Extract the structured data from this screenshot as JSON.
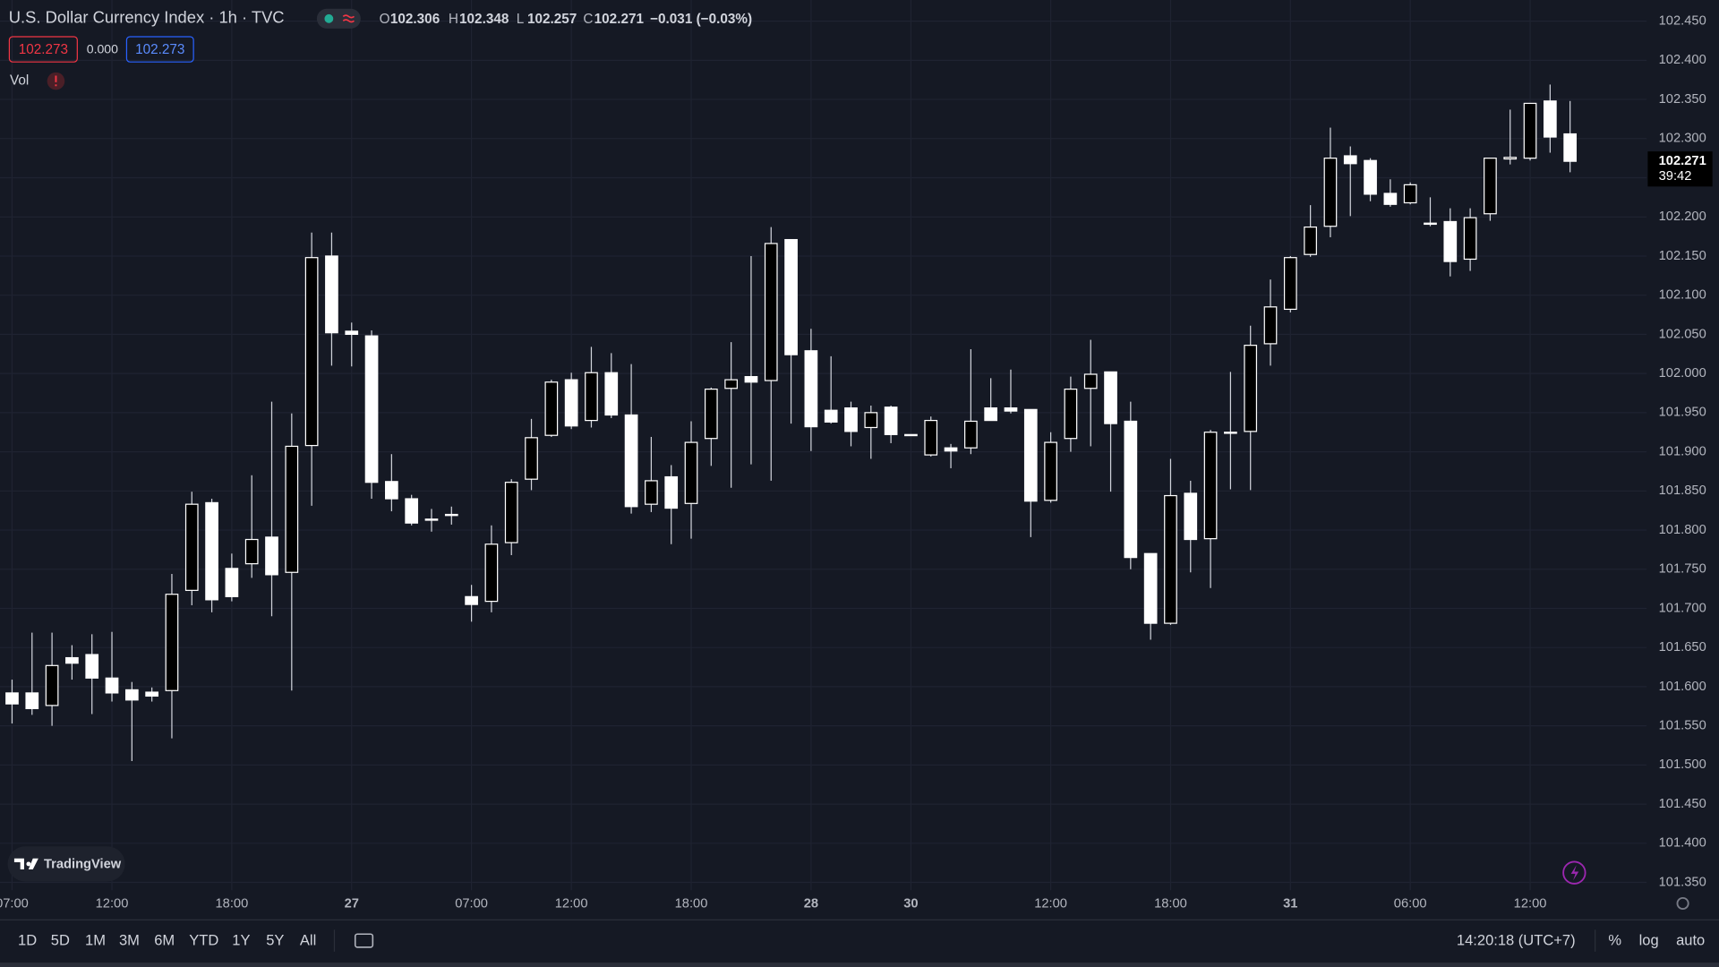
{
  "chart_data": {
    "type": "candlestick",
    "title": "U.S. Dollar Currency Index · 1h · TVC",
    "ohlc_labels": [
      "O",
      "H",
      "L",
      "C"
    ],
    "change_label": "−0.031 (−0.03%)",
    "price_boxes": [
      "102.273",
      "0.000",
      "102.273"
    ],
    "indicator_label": "Vol",
    "countdown": "39:42",
    "branding": "TradingView",
    "categories": [
      "07:00",
      null,
      null,
      null,
      null,
      "12:00",
      null,
      null,
      null,
      null,
      null,
      "18:00",
      null,
      null,
      null,
      null,
      null,
      "27",
      null,
      null,
      null,
      null,
      null,
      "07:00",
      null,
      null,
      null,
      null,
      "12:00",
      null,
      null,
      null,
      null,
      null,
      "18:00",
      null,
      null,
      null,
      null,
      null,
      "28",
      null,
      null,
      null,
      null,
      "30",
      null,
      null,
      null,
      null,
      null,
      null,
      "12:00",
      null,
      null,
      null,
      null,
      null,
      "18:00",
      null,
      null,
      null,
      null,
      null,
      "31",
      null,
      null,
      null,
      null,
      null,
      "06:00",
      null,
      null,
      null,
      null,
      null,
      "12:00",
      null,
      null
    ],
    "open": [
      101.592,
      101.592,
      101.576,
      101.637,
      101.641,
      101.611,
      101.596,
      101.593,
      101.595,
      101.723,
      101.835,
      101.751,
      101.757,
      101.791,
      101.746,
      101.908,
      102.15,
      102.054,
      102.048,
      101.862,
      101.84,
      101.814,
      101.82,
      101.715,
      101.709,
      101.784,
      101.865,
      101.921,
      101.992,
      101.94,
      102.001,
      101.947,
      101.833,
      101.868,
      101.834,
      101.917,
      101.981,
      101.996,
      101.991,
      102.171,
      102.029,
      101.953,
      101.956,
      101.931,
      101.957,
      101.922,
      101.896,
      101.905,
      101.905,
      101.956,
      101.956,
      101.954,
      101.838,
      101.917,
      101.981,
      102.002,
      101.939,
      101.77,
      101.681,
      101.847,
      101.789,
      101.924,
      101.926,
      102.038,
      102.082,
      102.152,
      102.188,
      102.278,
      102.272,
      102.23,
      102.218,
      102.192,
      102.194,
      102.146,
      102.204,
      102.274,
      102.275,
      102.348,
      102.306
    ],
    "high": [
      101.609,
      101.669,
      101.669,
      101.653,
      101.667,
      101.67,
      101.606,
      101.599,
      101.744,
      101.849,
      101.84,
      101.77,
      101.87,
      101.964,
      101.949,
      102.18,
      102.18,
      102.065,
      102.055,
      101.897,
      101.845,
      101.827,
      101.83,
      101.73,
      101.806,
      101.865,
      101.942,
      101.992,
      102.001,
      102.034,
      102.026,
      102.012,
      101.919,
      101.883,
      101.939,
      101.982,
      102.04,
      102.15,
      102.187,
      102.171,
      102.057,
      102.022,
      101.964,
      101.959,
      101.959,
      101.922,
      101.945,
      101.91,
      102.031,
      101.994,
      102.005,
      101.954,
      101.925,
      101.996,
      102.043,
      102.002,
      101.964,
      101.77,
      101.891,
      101.863,
      101.928,
      102.002,
      102.061,
      102.12,
      102.15,
      102.215,
      102.314,
      102.29,
      102.275,
      102.248,
      102.244,
      102.225,
      102.211,
      102.211,
      102.275,
      102.337,
      102.345,
      102.369,
      102.348
    ],
    "low": [
      101.553,
      101.564,
      101.55,
      101.609,
      101.565,
      101.581,
      101.505,
      101.581,
      101.534,
      101.704,
      101.695,
      101.709,
      101.739,
      101.69,
      101.595,
      101.831,
      102.01,
      102.009,
      101.84,
      101.824,
      101.806,
      101.798,
      101.807,
      101.683,
      101.695,
      101.768,
      101.851,
      101.919,
      101.929,
      101.931,
      101.943,
      101.821,
      101.823,
      101.782,
      101.789,
      101.882,
      101.854,
      101.884,
      101.863,
      101.936,
      101.901,
      101.936,
      101.907,
      101.891,
      101.911,
      101.921,
      101.894,
      101.879,
      101.897,
      101.94,
      101.949,
      101.791,
      101.835,
      101.9,
      101.907,
      101.849,
      101.75,
      101.66,
      101.679,
      101.746,
      101.726,
      101.852,
      101.851,
      102.01,
      102.078,
      102.149,
      102.174,
      102.201,
      102.22,
      102.213,
      102.216,
      102.188,
      102.124,
      102.131,
      102.195,
      102.267,
      102.272,
      102.282,
      102.257
    ],
    "close": [
      101.578,
      101.572,
      101.627,
      101.63,
      101.611,
      101.592,
      101.583,
      101.588,
      101.718,
      101.833,
      101.711,
      101.715,
      101.788,
      101.743,
      101.907,
      102.148,
      102.052,
      102.05,
      101.861,
      101.84,
      101.809,
      101.813,
      101.819,
      101.705,
      101.782,
      101.861,
      101.918,
      101.989,
      101.933,
      102.001,
      101.947,
      101.83,
      101.863,
      101.828,
      101.912,
      101.98,
      101.992,
      101.989,
      102.166,
      102.024,
      101.932,
      101.938,
      101.926,
      101.95,
      101.922,
      101.921,
      101.94,
      101.901,
      101.939,
      101.94,
      101.952,
      101.837,
      101.912,
      101.98,
      101.999,
      101.936,
      101.765,
      101.681,
      101.844,
      101.788,
      101.925,
      101.925,
      102.036,
      102.085,
      102.148,
      102.187,
      102.275,
      102.268,
      102.229,
      102.216,
      102.241,
      102.191,
      102.143,
      102.199,
      102.275,
      102.276,
      102.345,
      102.302,
      102.271
    ],
    "up_color": "#000000",
    "down_color": "#ffffff",
    "border_color": "#ffffff",
    "wick_color": "#d1d4dc",
    "ylim": [
      101.34,
      102.477
    ],
    "yticks": [
      {
        "value": 101.35,
        "label": "101.350"
      },
      {
        "value": 101.4,
        "label": "101.400"
      },
      {
        "value": 101.45,
        "label": "101.450"
      },
      {
        "value": 101.5,
        "label": "101.500"
      },
      {
        "value": 101.55,
        "label": "101.550"
      },
      {
        "value": 101.6,
        "label": "101.600"
      },
      {
        "value": 101.65,
        "label": "101.650"
      },
      {
        "value": 101.7,
        "label": "101.700"
      },
      {
        "value": 101.75,
        "label": "101.750"
      },
      {
        "value": 101.8,
        "label": "101.800"
      },
      {
        "value": 101.85,
        "label": "101.850"
      },
      {
        "value": 101.9,
        "label": "101.900"
      },
      {
        "value": 101.95,
        "label": "101.950"
      },
      {
        "value": 102.0,
        "label": "102.000"
      },
      {
        "value": 102.05,
        "label": "102.050"
      },
      {
        "value": 102.1,
        "label": "102.100"
      },
      {
        "value": 102.15,
        "label": "102.150"
      },
      {
        "value": 102.2,
        "label": "102.200"
      },
      {
        "value": 102.25,
        "label": "102.250"
      },
      {
        "value": 102.3,
        "label": "102.300"
      },
      {
        "value": 102.35,
        "label": "102.350"
      },
      {
        "value": 102.4,
        "label": "102.400"
      },
      {
        "value": 102.45,
        "label": "102.450"
      }
    ],
    "grid": true,
    "grid_color": "#1f2331",
    "background": "#151924"
  },
  "toolbar": {
    "range_buttons": [
      "1D",
      "5D",
      "1M",
      "3M",
      "6M",
      "YTD",
      "1Y",
      "5Y",
      "All"
    ],
    "clock": "14:20:18 (UTC+7)",
    "scale_buttons": [
      "%",
      "log",
      "auto"
    ]
  }
}
